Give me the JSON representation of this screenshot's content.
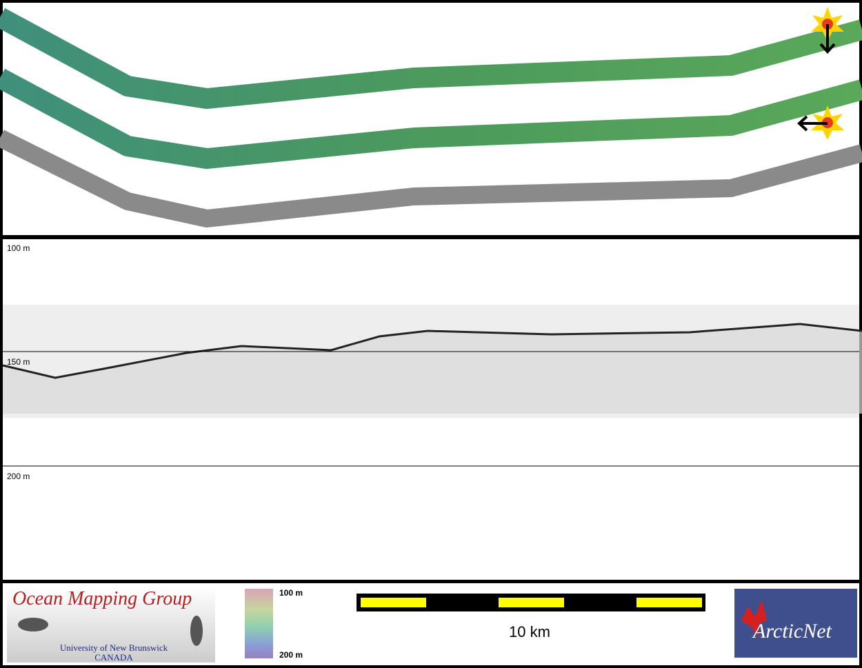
{
  "profile": {
    "depth_labels": [
      "100 m",
      "150 m",
      "200 m"
    ]
  },
  "color_legend": {
    "top": "100 m",
    "bottom": "200 m"
  },
  "scale_bar": {
    "label": "10 km"
  },
  "logos": {
    "omg_title": "Ocean Mapping Group",
    "omg_university": "University of New Brunswick",
    "omg_country": "CANADA",
    "arcticnet": "ArcticNet"
  }
}
